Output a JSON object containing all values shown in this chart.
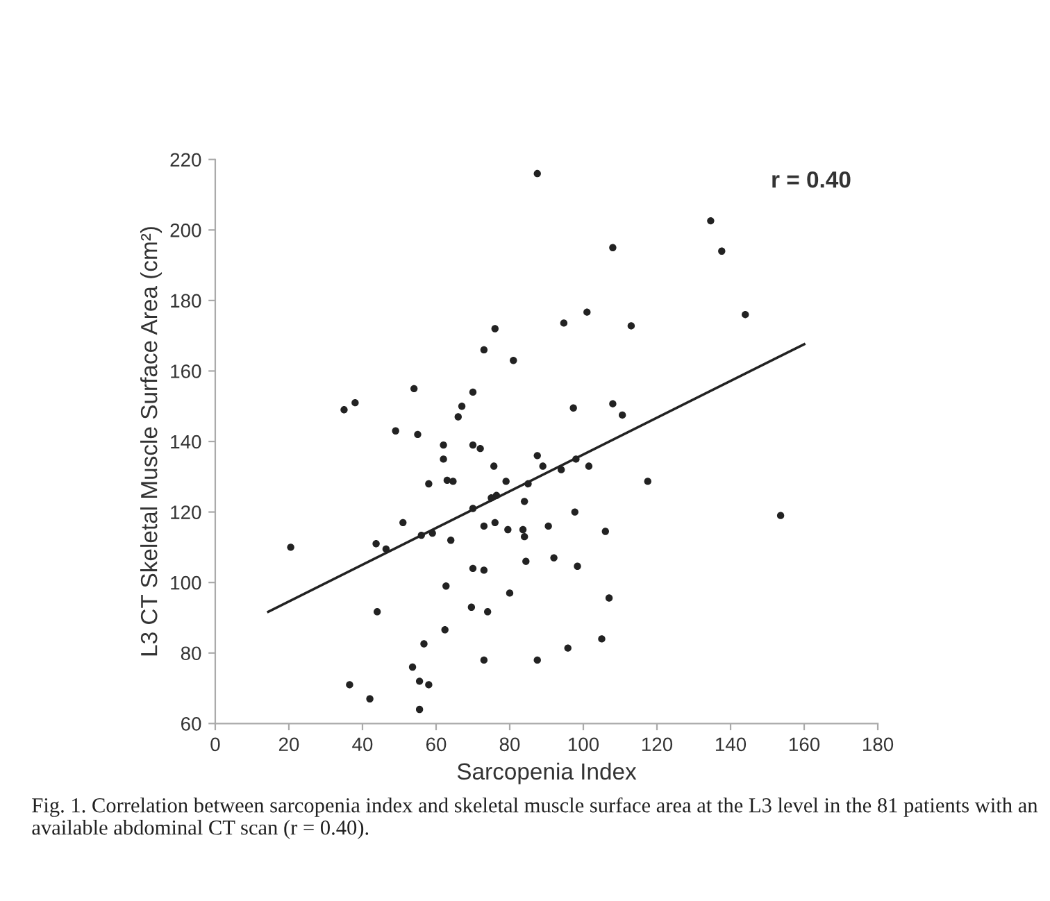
{
  "chart_data": {
    "type": "scatter",
    "xlabel": "Sarcopenia Index",
    "ylabel": "L3 CT Skeletal Muscle Surface Area (cm²)",
    "xlim": [
      0,
      180
    ],
    "xticks": [
      0,
      20,
      40,
      60,
      80,
      100,
      120,
      140,
      160,
      180
    ],
    "ylim": [
      60,
      220
    ],
    "yticks": [
      60,
      80,
      100,
      120,
      140,
      160,
      180,
      200,
      220
    ],
    "grid": false,
    "legend": false,
    "marker": "circle",
    "series": [
      {
        "color": "#222222",
        "x": [
          87.5,
          76,
          73,
          81,
          54,
          70,
          67,
          66,
          38,
          35,
          49,
          55,
          62,
          70,
          72,
          62,
          87.5,
          75.7,
          89,
          58,
          63,
          64.6,
          79,
          85,
          76.4,
          75,
          70,
          84,
          51,
          73,
          76,
          79.5,
          83.6,
          90.5,
          56,
          59,
          84,
          43.7,
          46.4,
          64,
          20.5,
          92,
          70,
          73,
          84.4,
          62.7,
          80,
          69.6,
          74,
          44,
          62.4,
          56.7,
          73,
          87.5,
          53.6,
          36.5,
          55.5,
          58,
          42,
          55.5,
          134.6,
          108,
          137.6,
          101,
          94.7,
          113,
          144,
          97.3,
          108,
          110.6,
          94,
          98,
          101.5,
          117.5,
          97.7,
          153.6,
          106,
          98.4,
          107,
          105,
          95.8
        ],
        "values": [
          216,
          172,
          166,
          163,
          155,
          154,
          150,
          147,
          151,
          149,
          143,
          142,
          139,
          139,
          138,
          135,
          136,
          133,
          133,
          128,
          129,
          128.7,
          128.7,
          128,
          124.7,
          124,
          121,
          123,
          117,
          116,
          117,
          115,
          115,
          116,
          113.4,
          114,
          113,
          111,
          109.5,
          112,
          110,
          107,
          104,
          103.5,
          106,
          99,
          97,
          93,
          91.7,
          91.7,
          86.6,
          82.6,
          78,
          78,
          76,
          71,
          72,
          71,
          67,
          64,
          202.6,
          195,
          194,
          176.7,
          173.6,
          172.8,
          176,
          149.5,
          150.7,
          147.5,
          132,
          135,
          133,
          128.7,
          120,
          119,
          114.5,
          104.6,
          95.6,
          84,
          81.4
        ]
      },
      {
        "type": "line",
        "color": "#222222",
        "x": [
          14.4,
          160
        ],
        "values": [
          91.7,
          167.6
        ],
        "marker": "none",
        "line_style": "solid"
      }
    ],
    "annotations": [
      "r = 0.40",
      "Fig. 1. Correlation between sarcopenia index and skeletal muscle surface area at the L3 level in the 81 patients with an available abdominal CT scan (r = 0.40)."
    ]
  }
}
